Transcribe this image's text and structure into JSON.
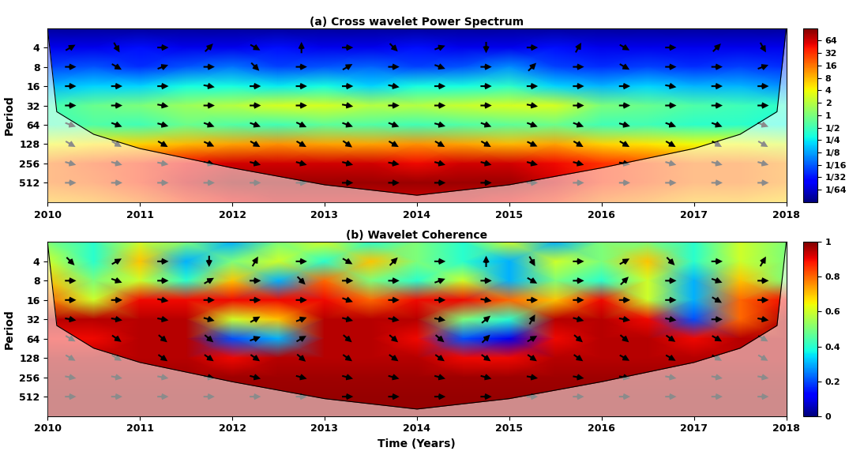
{
  "chart_data": [
    {
      "type": "heatmap",
      "title": "(a) Cross wavelet Power Spectrum",
      "ylabel": "Period",
      "log": "y",
      "x": [
        2010,
        2010.5,
        2011,
        2011.5,
        2012,
        2012.5,
        2013,
        2013.5,
        2014,
        2014.5,
        2015,
        2015.5,
        2016,
        2016.5,
        2017,
        2017.5,
        2018
      ],
      "periods": [
        2,
        4,
        8,
        16,
        32,
        64,
        128,
        256,
        512,
        1024
      ],
      "cells": [
        [
          0.01,
          0.01,
          0.01,
          0.01,
          0.01,
          0.01,
          0.01,
          0.01,
          0.01,
          0.01,
          0.01,
          0.01,
          0.01,
          0.01,
          0.01,
          0.01,
          0.01
        ],
        [
          0.02,
          0.02,
          0.03,
          0.02,
          0.02,
          0.03,
          0.02,
          0.02,
          0.03,
          0.02,
          0.02,
          0.03,
          0.02,
          0.02,
          0.02,
          0.02,
          0.02
        ],
        [
          0.05,
          0.06,
          0.04,
          0.06,
          0.08,
          0.05,
          0.06,
          0.07,
          0.05,
          0.06,
          0.1,
          0.05,
          0.04,
          0.05,
          0.04,
          0.05,
          0.04
        ],
        [
          0.15,
          0.2,
          0.2,
          0.3,
          0.3,
          0.25,
          0.3,
          0.2,
          0.3,
          0.3,
          0.4,
          0.2,
          0.15,
          0.2,
          0.15,
          0.15,
          0.1
        ],
        [
          0.5,
          0.8,
          1,
          1.5,
          2,
          3,
          3,
          2,
          2,
          2.5,
          3,
          3,
          1,
          0.8,
          0.6,
          0.5,
          0.4
        ],
        [
          0.5,
          0.6,
          0.5,
          0.8,
          0.6,
          0.5,
          0.7,
          0.6,
          0.5,
          0.6,
          0.7,
          0.8,
          0.5,
          0.5,
          0.4,
          0.4,
          0.3
        ],
        [
          4,
          5,
          6,
          8,
          10,
          12,
          10,
          10,
          12,
          10,
          8,
          10,
          6,
          5,
          4,
          4,
          3
        ],
        [
          16,
          24,
          32,
          48,
          64,
          64,
          64,
          64,
          48,
          64,
          64,
          48,
          32,
          24,
          16,
          16,
          12
        ],
        [
          16,
          20,
          32,
          64,
          100,
          100,
          100,
          100,
          100,
          100,
          100,
          64,
          32,
          24,
          16,
          16,
          12
        ],
        [
          8,
          10,
          16,
          32,
          48,
          64,
          64,
          64,
          64,
          64,
          48,
          32,
          16,
          12,
          8,
          8,
          6
        ]
      ],
      "colorbar": {
        "log": true,
        "range": [
          0.0078125,
          128
        ],
        "ticks": [
          {
            "value": 0.015625,
            "label": "1/64"
          },
          {
            "value": 0.03125,
            "label": "1/32"
          },
          {
            "value": 0.0625,
            "label": "1/16"
          },
          {
            "value": 0.125,
            "label": "1/8"
          },
          {
            "value": 0.25,
            "label": "1/4"
          },
          {
            "value": 0.5,
            "label": "1/2"
          },
          1,
          2,
          4,
          8,
          16,
          32,
          64
        ]
      },
      "phase_arrows": {
        "x": [
          2010.25,
          2010.75,
          2011.25,
          2011.75,
          2012.25,
          2012.75,
          2013.25,
          2013.75,
          2014.25,
          2014.75,
          2015.25,
          2015.75,
          2016.25,
          2016.75,
          2017.25,
          2017.75
        ],
        "periods": [
          4,
          8,
          16,
          32,
          64,
          128,
          256,
          512
        ],
        "angles": [
          [
            30,
            -60,
            0,
            45,
            -30,
            90,
            0,
            -45,
            20,
            -90,
            0,
            60,
            -30,
            0,
            45,
            -60
          ],
          [
            0,
            -30,
            20,
            0,
            -45,
            0,
            30,
            0,
            -20,
            0,
            45,
            0,
            -30,
            0,
            0,
            20
          ],
          [
            0,
            0,
            0,
            -10,
            0,
            0,
            0,
            -10,
            0,
            0,
            0,
            0,
            0,
            -10,
            0,
            0
          ],
          [
            0,
            0,
            -10,
            0,
            0,
            0,
            -10,
            0,
            0,
            0,
            -10,
            0,
            0,
            0,
            0,
            0
          ],
          [
            -20,
            -20,
            -15,
            -20,
            -20,
            -25,
            -20,
            -20,
            -15,
            -20,
            -20,
            -20,
            -15,
            -20,
            -20,
            -20
          ],
          [
            -30,
            -30,
            -30,
            -25,
            -30,
            -30,
            -35,
            -30,
            -30,
            -30,
            -25,
            -30,
            -30,
            -30,
            -30,
            -30
          ],
          [
            -15,
            -15,
            -10,
            -15,
            -15,
            -15,
            -15,
            -10,
            -15,
            -15,
            -15,
            -15,
            -10,
            -15,
            -15,
            -15
          ],
          [
            0,
            0,
            0,
            0,
            0,
            0,
            0,
            0,
            0,
            0,
            0,
            0,
            0,
            0,
            0,
            0
          ]
        ]
      },
      "coi": {
        "x": [
          2010,
          2010.1,
          2010.5,
          2011,
          2012,
          2013,
          2014,
          2015,
          2016,
          2017,
          2017.5,
          2017.9,
          2018
        ],
        "period": [
          2,
          40,
          90,
          150,
          300,
          550,
          800,
          550,
          300,
          150,
          90,
          40,
          2
        ]
      },
      "xlim": [
        2010,
        2018
      ],
      "xticks": [
        2010,
        2011,
        2012,
        2013,
        2014,
        2015,
        2016,
        2017,
        2018
      ],
      "ylim": [
        1024,
        2
      ],
      "yticks": [
        4,
        8,
        16,
        32,
        64,
        128,
        256,
        512
      ]
    },
    {
      "type": "heatmap",
      "title": "(b) Wavelet Coherence",
      "ylabel": "Period",
      "xlabel": "Time (Years)",
      "log": "y",
      "x": [
        2010,
        2010.5,
        2011,
        2011.5,
        2012,
        2012.5,
        2013,
        2013.5,
        2014,
        2014.5,
        2015,
        2015.5,
        2016,
        2016.5,
        2017,
        2017.5,
        2018
      ],
      "periods": [
        2,
        4,
        8,
        16,
        32,
        64,
        128,
        256,
        512,
        1024
      ],
      "cells": [
        [
          0.5,
          0.4,
          0.6,
          0.5,
          0.3,
          0.5,
          0.6,
          0.4,
          0.5,
          0.4,
          0.6,
          0.3,
          0.5,
          0.5,
          0.4,
          0.6,
          0.5
        ],
        [
          0.6,
          0.4,
          0.7,
          0.3,
          0.5,
          0.6,
          0.4,
          0.7,
          0.5,
          0.4,
          0.3,
          0.6,
          0.5,
          0.7,
          0.4,
          0.6,
          0.5
        ],
        [
          0.7,
          0.5,
          0.6,
          0.4,
          0.7,
          0.3,
          0.8,
          0.5,
          0.4,
          0.6,
          0.3,
          0.5,
          0.4,
          0.6,
          0.3,
          0.7,
          0.5
        ],
        [
          0.8,
          0.6,
          0.9,
          0.9,
          0.9,
          0.9,
          0.9,
          0.8,
          0.9,
          0.9,
          0.8,
          0.7,
          0.9,
          0.6,
          0.3,
          0.8,
          0.9
        ],
        [
          0.95,
          0.95,
          0.95,
          0.95,
          0.6,
          0.7,
          0.95,
          0.95,
          0.95,
          0.5,
          0.4,
          0.95,
          0.95,
          0.9,
          0.2,
          0.8,
          0.95
        ],
        [
          0.9,
          0.9,
          0.95,
          0.95,
          0.2,
          0.3,
          0.95,
          0.95,
          0.9,
          0.2,
          0.1,
          0.9,
          0.95,
          0.95,
          0.9,
          0.95,
          0.95
        ],
        [
          0.95,
          0.95,
          0.95,
          0.95,
          0.9,
          0.95,
          0.95,
          0.95,
          0.95,
          0.9,
          0.9,
          0.95,
          0.95,
          0.95,
          0.95,
          0.95,
          0.95
        ],
        [
          0.97,
          0.97,
          0.97,
          0.97,
          0.97,
          0.97,
          0.97,
          0.97,
          0.97,
          0.97,
          0.97,
          0.97,
          0.97,
          0.97,
          0.97,
          0.97,
          0.97
        ],
        [
          0.98,
          0.98,
          0.98,
          0.98,
          0.98,
          0.98,
          0.98,
          0.98,
          0.98,
          0.98,
          0.98,
          0.98,
          0.98,
          0.98,
          0.98,
          0.98,
          0.98
        ],
        [
          0.98,
          0.98,
          0.98,
          0.98,
          0.98,
          0.98,
          0.98,
          0.98,
          0.98,
          0.98,
          0.98,
          0.98,
          0.98,
          0.98,
          0.98,
          0.98,
          0.98
        ]
      ],
      "colorbar": {
        "range": [
          0,
          1
        ],
        "ticks": [
          0,
          0.2,
          0.4,
          0.6,
          0.8,
          1
        ]
      },
      "phase_arrows": {
        "x": [
          2010.25,
          2010.75,
          2011.25,
          2011.75,
          2012.25,
          2012.75,
          2013.25,
          2013.75,
          2014.25,
          2014.75,
          2015.25,
          2015.75,
          2016.25,
          2016.75,
          2017.25,
          2017.75
        ],
        "periods": [
          4,
          8,
          16,
          32,
          64,
          128,
          256,
          512
        ],
        "angles": [
          [
            -45,
            30,
            0,
            -90,
            60,
            0,
            -30,
            45,
            0,
            90,
            -60,
            0,
            30,
            -45,
            0,
            60
          ],
          [
            0,
            -20,
            0,
            30,
            0,
            -45,
            0,
            0,
            20,
            0,
            -30,
            0,
            45,
            0,
            -20,
            0
          ],
          [
            0,
            0,
            -10,
            0,
            0,
            0,
            -20,
            0,
            0,
            -10,
            0,
            0,
            0,
            0,
            -30,
            0
          ],
          [
            -10,
            -10,
            -10,
            -15,
            30,
            20,
            -15,
            -10,
            -10,
            40,
            60,
            -15,
            -10,
            -10,
            0,
            -10
          ],
          [
            -30,
            -35,
            -40,
            -40,
            20,
            30,
            -40,
            -40,
            -40,
            45,
            30,
            -40,
            -40,
            -35,
            -30,
            -30
          ],
          [
            -30,
            -30,
            -35,
            -35,
            -35,
            -40,
            -35,
            -35,
            -35,
            -35,
            -35,
            -35,
            -30,
            -30,
            -30,
            -30
          ],
          [
            -10,
            -10,
            -10,
            -10,
            -15,
            -15,
            -15,
            -15,
            -15,
            -15,
            -10,
            -10,
            -10,
            -10,
            -10,
            -10
          ],
          [
            0,
            0,
            0,
            0,
            0,
            0,
            0,
            0,
            0,
            0,
            0,
            0,
            0,
            0,
            0,
            0
          ]
        ]
      },
      "coi": {
        "x": [
          2010,
          2010.1,
          2010.5,
          2011,
          2012,
          2013,
          2014,
          2015,
          2016,
          2017,
          2017.5,
          2017.9,
          2018
        ],
        "period": [
          2,
          40,
          90,
          150,
          300,
          550,
          800,
          550,
          300,
          150,
          90,
          40,
          2
        ]
      },
      "xlim": [
        2010,
        2018
      ],
      "xticks": [
        2010,
        2011,
        2012,
        2013,
        2014,
        2015,
        2016,
        2017,
        2018
      ],
      "ylim": [
        1024,
        2
      ],
      "yticks": [
        4,
        8,
        16,
        32,
        64,
        128,
        256,
        512
      ]
    }
  ]
}
